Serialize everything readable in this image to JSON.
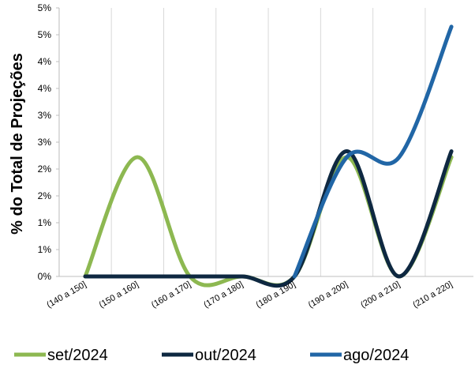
{
  "chart_data": {
    "type": "line",
    "title": "",
    "xlabel": "",
    "ylabel": "% do Total de Projeções",
    "categories": [
      "(140 a 150]",
      "(150 a 160]",
      "(160 a 170]",
      "(170 a 180]",
      "(180 a 190]",
      "(190 a 200]",
      "(200 a 210]",
      "(210 a 220]"
    ],
    "y_tick_labels": [
      "0%",
      "1%",
      "1%",
      "2%",
      "2%",
      "3%",
      "3%",
      "4%",
      "4%",
      "5%",
      "5%"
    ],
    "ylim": [
      0,
      5
    ],
    "grid": "vertical",
    "smooth": true,
    "legend_position": "bottom",
    "series": [
      {
        "name": "set/2024",
        "color": "#8DB851",
        "values": [
          0,
          2.22,
          0,
          0,
          0,
          2.22,
          0,
          2.22
        ]
      },
      {
        "name": "out/2024",
        "color": "#0E2841",
        "values": [
          0,
          0,
          0,
          0,
          0,
          2.33,
          0,
          2.33
        ]
      },
      {
        "name": "ago/2024",
        "color": "#2166A6",
        "values": [
          null,
          null,
          null,
          null,
          0,
          2.22,
          2.22,
          4.65
        ]
      }
    ]
  }
}
